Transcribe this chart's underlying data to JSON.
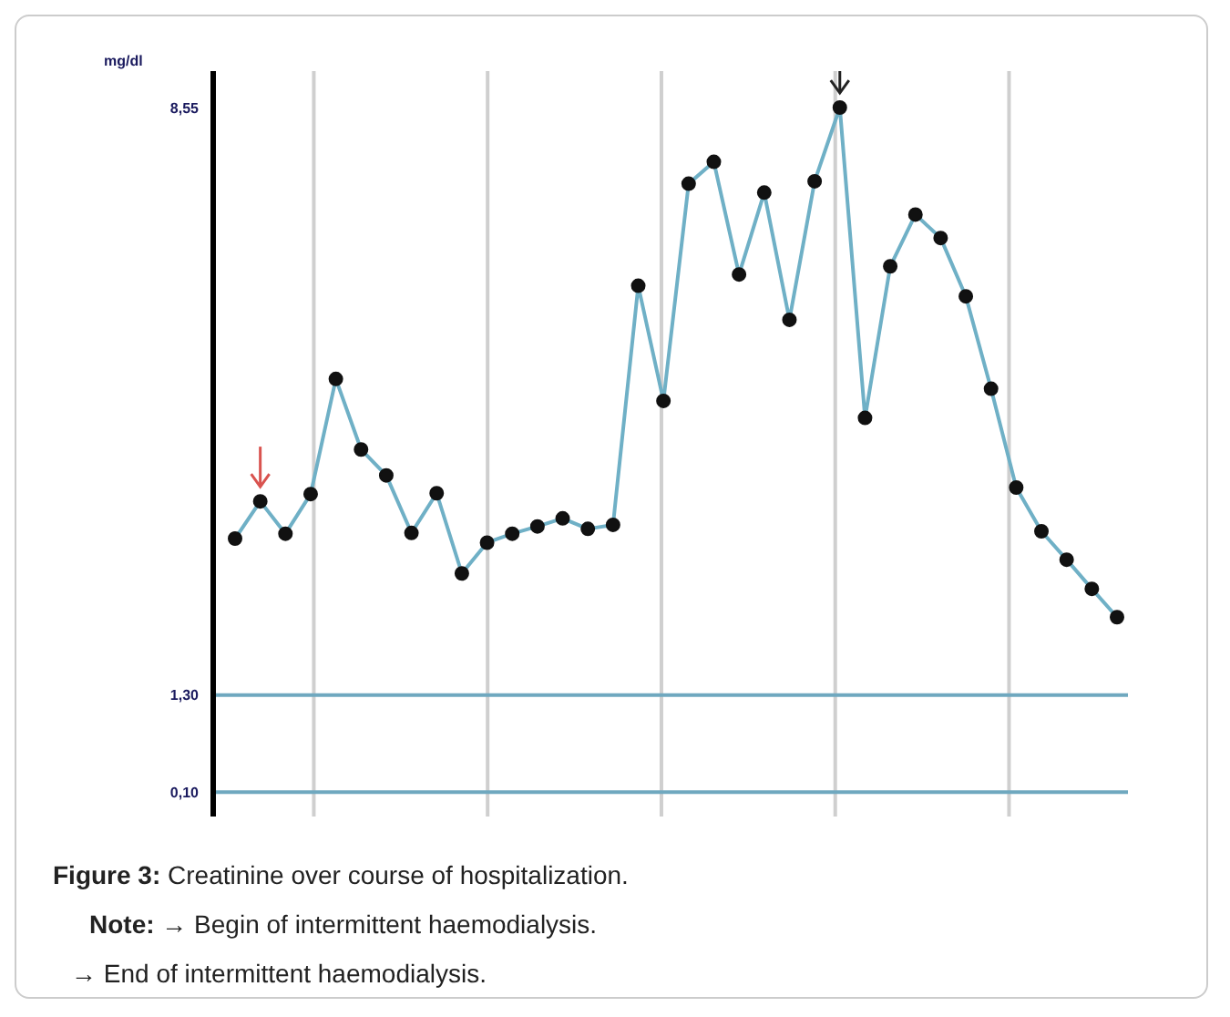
{
  "chart_data": {
    "type": "line",
    "title": "Figure 3: Creatinine over course of hospitalization.",
    "ylabel": "mg/dl",
    "categories": [
      null,
      null,
      null,
      null,
      null,
      null,
      null,
      null,
      null,
      null,
      null,
      null,
      null,
      null,
      null,
      null,
      null,
      null,
      null,
      null,
      null,
      null,
      null,
      null,
      null,
      null,
      null,
      null,
      null,
      null,
      null,
      null,
      null,
      null,
      null,
      null
    ],
    "series": [
      {
        "color": "#6fb0c6",
        "values": [
          3.23,
          3.69,
          3.29,
          3.78,
          5.2,
          4.33,
          4.01,
          3.3,
          3.79,
          2.8,
          3.18,
          3.29,
          3.38,
          3.48,
          3.35,
          3.4,
          6.35,
          4.93,
          7.61,
          7.88,
          6.49,
          7.5,
          5.93,
          7.64,
          8.55,
          4.72,
          6.59,
          7.23,
          6.94,
          6.22,
          5.08,
          3.86,
          3.32,
          2.97,
          2.61,
          2.26
        ]
      }
    ],
    "ylim": [
      -0.2,
      9
    ],
    "yticks": [
      {
        "value": 0.1,
        "label": "0,10"
      },
      {
        "value": 1.3,
        "label": "1,30"
      },
      {
        "value": 8.55,
        "label": "8,55"
      }
    ],
    "ref_lines": [
      {
        "axis": "y",
        "value": 0.1,
        "color": "#6fa8bf"
      },
      {
        "axis": "y",
        "value": 1.3,
        "color": "#6fa8bf"
      }
    ],
    "grid": "x",
    "tick_labels": "y",
    "marker": "circle",
    "line_style": "solid",
    "annotations": [
      "Note: → Begin of intermittent haemodialysis.",
      "→ End of intermittent haemodialysis."
    ]
  }
}
